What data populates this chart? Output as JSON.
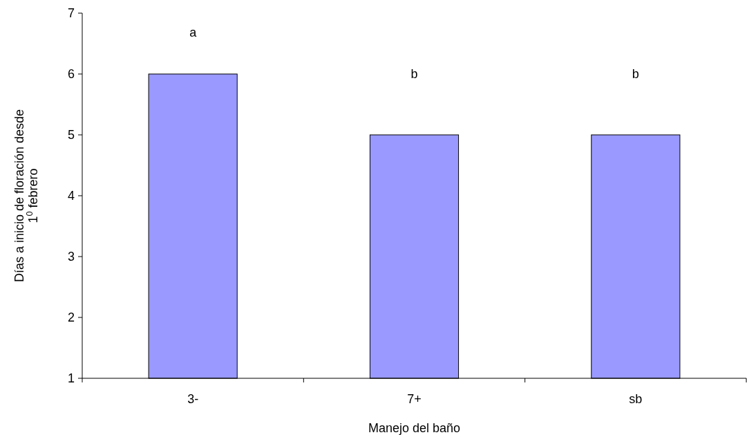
{
  "chart_data": {
    "type": "bar",
    "xlabel": "Manejo del baño",
    "ylabel": "Días a inicio de floración desde\n1$^{0}$ febrero",
    "categories": [
      "3-",
      "7+",
      "sb"
    ],
    "values": [
      6,
      5,
      5
    ],
    "color": "#9999ff",
    "ylim": [
      1,
      7
    ],
    "yticks": [
      1,
      2,
      3,
      4,
      5,
      6,
      7
    ],
    "grid": false,
    "annotations": [
      "a",
      "b",
      "b"
    ]
  }
}
